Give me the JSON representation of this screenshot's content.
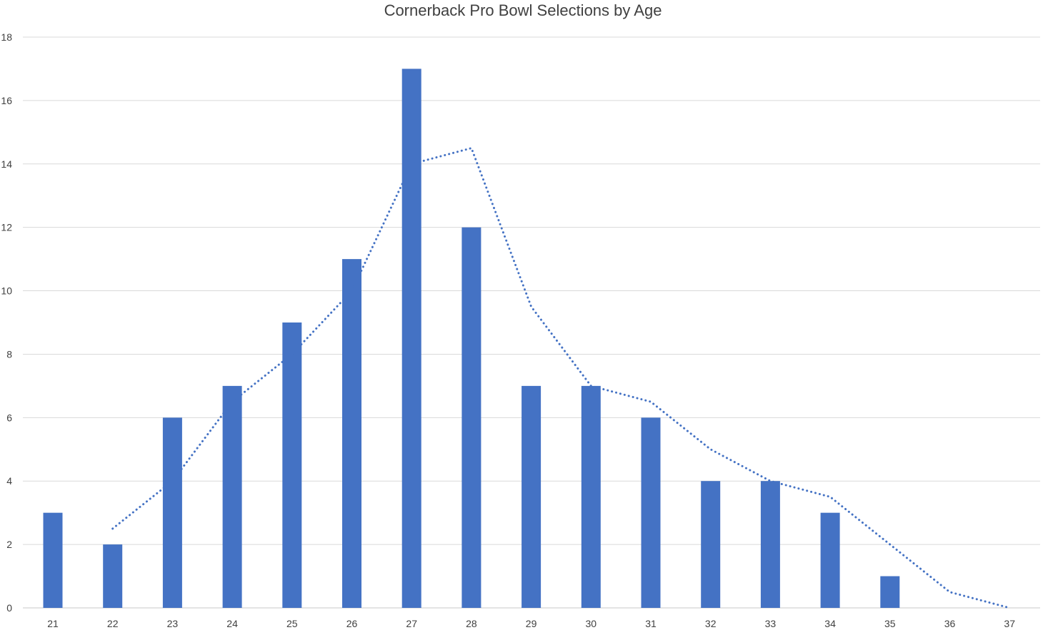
{
  "chart_data": {
    "type": "bar",
    "title": "Cornerback Pro Bowl Selections by Age",
    "xlabel": "",
    "ylabel": "",
    "categories": [
      "21",
      "22",
      "23",
      "24",
      "25",
      "26",
      "27",
      "28",
      "29",
      "30",
      "31",
      "32",
      "33",
      "34",
      "35",
      "36",
      "37"
    ],
    "series": [
      {
        "type": "bar",
        "values": [
          3,
          2,
          6,
          7,
          9,
          11,
          17,
          12,
          7,
          7,
          6,
          4,
          4,
          3,
          1,
          0,
          0
        ],
        "color": "#4472C4"
      },
      {
        "type": "line",
        "style": "dotted",
        "values": [
          null,
          2.5,
          4,
          6.5,
          8,
          10,
          14,
          14.5,
          9.5,
          7,
          6.5,
          5,
          4,
          3.5,
          2,
          0.5,
          0
        ],
        "color": "#4472C4"
      }
    ],
    "ylim": [
      0,
      18
    ],
    "yticks": [
      0,
      2,
      4,
      6,
      8,
      10,
      12,
      14,
      16,
      18
    ],
    "grid": true,
    "legend": "none"
  }
}
